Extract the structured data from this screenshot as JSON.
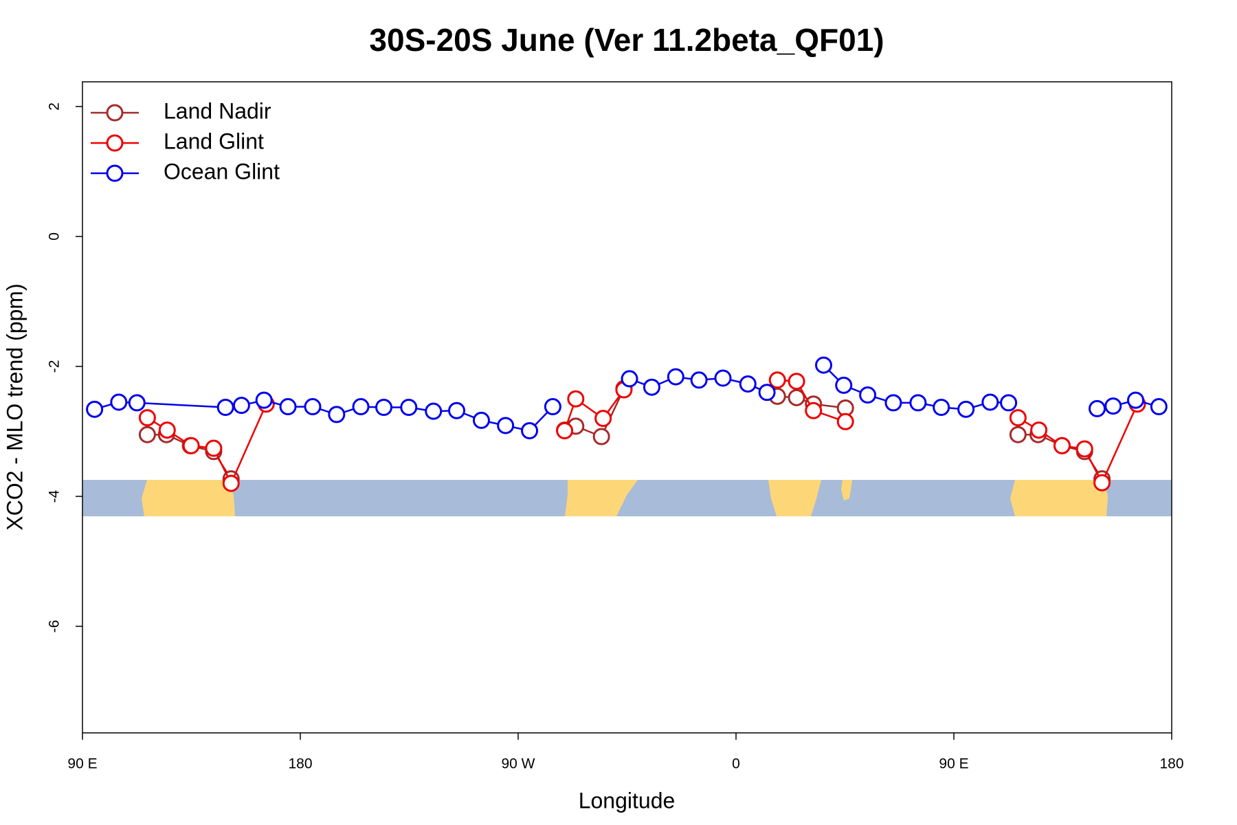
{
  "chart_data": {
    "type": "line",
    "title": "30S-20S June (Ver 11.2beta_QF01)",
    "x_label": "Longitude",
    "y_label": "XCO2 - MLO trend (ppm)",
    "xlim": [
      90,
      540
    ],
    "xticks": [
      {
        "value": 90,
        "label": "90 E"
      },
      180,
      {
        "value": 270,
        "label": "90 W"
      },
      {
        "value": 360,
        "label": "0"
      },
      {
        "value": 450,
        "label": "90 E"
      },
      {
        "value": 540,
        "label": "180"
      }
    ],
    "ylim": [
      -7.64,
      2.38
    ],
    "yticks": [
      2,
      0,
      -2,
      -4,
      -6
    ],
    "legend": "top-left",
    "series": [
      {
        "name": "Land Nadir",
        "color": "#a52a2a",
        "x": [
          116.8,
          124.7,
          134.6,
          144.2,
          151.4,
          null,
          289.2,
          293.8,
          304.4,
          313.7,
          null,
          377.1,
          385,
          392,
          405.2,
          null,
          476.5,
          484.8,
          494.7,
          504,
          511.2
        ],
        "values": [
          -3.05,
          -3.05,
          -3.22,
          -3.31,
          -3.73,
          null,
          -2.98,
          -2.92,
          -3.08,
          -2.34,
          null,
          -2.46,
          -2.48,
          -2.58,
          -2.64,
          null,
          -3.05,
          -3.05,
          -3.22,
          -3.31,
          -3.73
        ]
      },
      {
        "name": "Land Glint",
        "color": "#ee0000",
        "x": [
          116.8,
          125,
          134.9,
          144.2,
          151.4,
          165.9,
          null,
          289.2,
          293.8,
          305.1,
          313.7,
          null,
          377.1,
          385,
          392,
          405.2,
          null,
          476.5,
          485.1,
          494.7,
          504,
          511.2,
          525.8
        ],
        "values": [
          -2.79,
          -2.98,
          -3.22,
          -3.26,
          -3.8,
          -2.58,
          null,
          -2.99,
          -2.5,
          -2.8,
          -2.36,
          null,
          -2.21,
          -2.23,
          -2.68,
          -2.85,
          null,
          -2.79,
          -2.98,
          -3.22,
          -3.27,
          -3.79,
          -2.58
        ]
      },
      {
        "name": "Ocean Glint",
        "color": "#0000ee",
        "x": [
          95,
          105,
          112.5,
          149.1,
          155.7,
          165,
          174.9,
          185.1,
          195,
          205,
          214.5,
          224.8,
          235,
          244.6,
          254.8,
          264.8,
          274.7,
          284.3,
          null,
          316,
          325.2,
          335.1,
          344.7,
          354.6,
          364.9,
          372.8,
          null,
          396.2,
          404.5,
          414.4,
          425,
          435.2,
          444.8,
          455,
          465,
          472.6,
          null,
          509.2,
          515.8,
          525.1,
          534.7
        ],
        "values": [
          -2.66,
          -2.55,
          -2.56,
          -2.63,
          -2.6,
          -2.52,
          -2.62,
          -2.62,
          -2.74,
          -2.62,
          -2.63,
          -2.63,
          -2.69,
          -2.68,
          -2.83,
          -2.91,
          -2.99,
          -2.62,
          null,
          -2.19,
          -2.32,
          -2.16,
          -2.21,
          -2.18,
          -2.27,
          -2.4,
          null,
          -1.98,
          -2.29,
          -2.44,
          -2.56,
          -2.56,
          -2.63,
          -2.66,
          -2.55,
          -2.56,
          null,
          -2.65,
          -2.61,
          -2.52,
          -2.62
        ]
      }
    ]
  }
}
